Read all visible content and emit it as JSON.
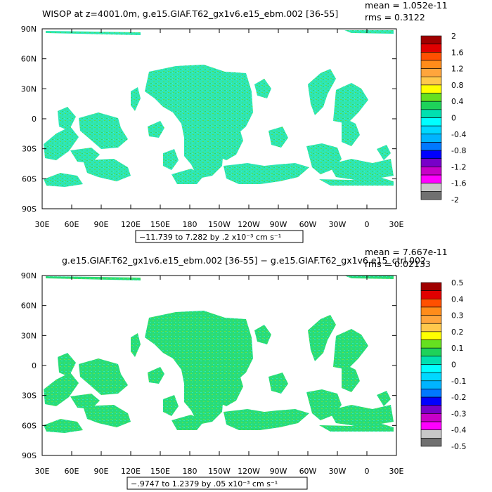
{
  "chart_data": [
    {
      "type": "heatmap",
      "title": "WISOP at z=4001.0m, g.e15.GIAF.T62_gx1v6.e15_ebm.002 [36-55]",
      "stats": {
        "mean": "mean = 1.052e-11",
        "rms": "rms = 0.3122"
      },
      "range_note": "−11.739 to 7.282 by .2 x10⁻³ cm s⁻¹",
      "x_ticks": [
        "30E",
        "60E",
        "90E",
        "120E",
        "150E",
        "180",
        "150W",
        "120W",
        "90W",
        "60W",
        "30W",
        "0",
        "30E"
      ],
      "y_ticks": [
        "90N",
        "60N",
        "30N",
        "0",
        "30S",
        "60S",
        "90S"
      ],
      "xlim": [
        30,
        390
      ],
      "ylim": [
        -90,
        90
      ],
      "colorbar": {
        "labels": [
          "2",
          "1.6",
          "1.2",
          "0.8",
          "0.4",
          "0",
          "-0.4",
          "-0.8",
          "-1.2",
          "-1.6",
          "-2"
        ],
        "colors": [
          "#a00000",
          "#e00000",
          "#ff5000",
          "#ff8c1a",
          "#ffa53c",
          "#ffc84c",
          "#ffff00",
          "#66e020",
          "#1ed25a",
          "#00e0b0",
          "#00ffff",
          "#00d8ff",
          "#00b4ff",
          "#0078ff",
          "#0000ff",
          "#7800c8",
          "#c800c8",
          "#ff00ff",
          "#c8c8c8",
          "#707070"
        ]
      }
    },
    {
      "type": "heatmap",
      "title": "g.e15.GIAF.T62_gx1v6.e15_ebm.002 [36-55] − g.e15.GIAF.T62_gx1v6.e15_ctrl.002",
      "stats": {
        "mean": "mean = 7.667e-11",
        "rms": "rms = 0.02133"
      },
      "range_note": "−.9747 to 1.2379 by .05 x10⁻³ cm s⁻¹",
      "x_ticks": [
        "30E",
        "60E",
        "90E",
        "120E",
        "150E",
        "180",
        "150W",
        "120W",
        "90W",
        "60W",
        "30W",
        "0",
        "30E"
      ],
      "y_ticks": [
        "90N",
        "60N",
        "30N",
        "0",
        "30S",
        "60S",
        "90S"
      ],
      "xlim": [
        30,
        390
      ],
      "ylim": [
        -90,
        90
      ],
      "colorbar": {
        "labels": [
          "0.5",
          "0.4",
          "0.3",
          "0.2",
          "0.1",
          "0",
          "-0.1",
          "-0.2",
          "-0.3",
          "-0.4",
          "-0.5"
        ],
        "colors": [
          "#a00000",
          "#e00000",
          "#ff5000",
          "#ff8c1a",
          "#ffa53c",
          "#ffc84c",
          "#ffff00",
          "#66e020",
          "#1ed25a",
          "#00e0b0",
          "#00ffff",
          "#00d8ff",
          "#00b4ff",
          "#0078ff",
          "#0000ff",
          "#7800c8",
          "#c800c8",
          "#ff00ff",
          "#c8c8c8",
          "#707070"
        ]
      }
    }
  ]
}
